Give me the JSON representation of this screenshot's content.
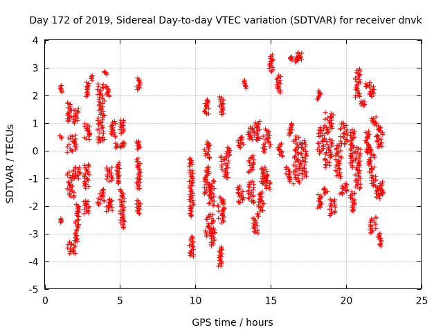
{
  "chart_data": {
    "type": "scatter",
    "title": "Day 172 of 2019, Sidereal Day-to-day VTEC variation (SDTVAR) for receiver dnvk",
    "xlabel": "GPS time / hours",
    "ylabel": "SDTVAR / TECUs",
    "xlim": [
      0,
      25
    ],
    "ylim": [
      -5,
      4
    ],
    "xticks": [
      0,
      5,
      10,
      15,
      20,
      25
    ],
    "yticks": [
      -5,
      -4,
      -3,
      -2,
      -1,
      0,
      1,
      2,
      3,
      4
    ],
    "xtick_labels": [
      "0",
      "5",
      "10",
      "15",
      "20",
      "25"
    ],
    "ytick_labels": [
      "-5",
      "-4",
      "-3",
      "-2",
      "-1",
      "0",
      "1",
      "2",
      "3",
      "4"
    ],
    "grid": true,
    "marker": "+",
    "series_color": "#ff0000",
    "clusters": [
      {
        "x": [
          1.0,
          1.15
        ],
        "y": [
          2.1,
          2.35
        ]
      },
      {
        "x": [
          1.0,
          1.15
        ],
        "y": [
          0.45,
          0.55
        ]
      },
      {
        "x": [
          1.0,
          1.15
        ],
        "y": [
          -2.6,
          -2.45
        ]
      },
      {
        "x": [
          1.5,
          1.8
        ],
        "y": [
          1.05,
          1.75
        ]
      },
      {
        "x": [
          1.5,
          2.1
        ],
        "y": [
          -0.05,
          0.55
        ]
      },
      {
        "x": [
          1.5,
          2.0
        ],
        "y": [
          -1.7,
          -0.8
        ]
      },
      {
        "x": [
          1.5,
          2.1
        ],
        "y": [
          -3.75,
          -3.3
        ]
      },
      {
        "x": [
          1.9,
          2.35
        ],
        "y": [
          1.0,
          1.5
        ]
      },
      {
        "x": [
          1.9,
          2.4
        ],
        "y": [
          -1.0,
          -0.6
        ]
      },
      {
        "x": [
          2.0,
          2.3
        ],
        "y": [
          -3.3,
          -2.5
        ]
      },
      {
        "x": [
          2.1,
          2.35
        ],
        "y": [
          -2.4,
          -1.95
        ]
      },
      {
        "x": [
          2.7,
          2.95
        ],
        "y": [
          1.95,
          2.45
        ]
      },
      {
        "x": [
          2.6,
          3.0
        ],
        "y": [
          0.4,
          0.95
        ]
      },
      {
        "x": [
          2.6,
          3.0
        ],
        "y": [
          -1.35,
          -0.5
        ]
      },
      {
        "x": [
          2.6,
          3.0
        ],
        "y": [
          -2.3,
          -1.8
        ]
      },
      {
        "x": [
          3.1,
          3.25
        ],
        "y": [
          2.55,
          2.7
        ]
      },
      {
        "x": [
          3.5,
          4.0
        ],
        "y": [
          0.6,
          2.4
        ]
      },
      {
        "x": [
          3.5,
          4.0
        ],
        "y": [
          0.3,
          0.5
        ]
      },
      {
        "x": [
          3.5,
          4.0
        ],
        "y": [
          -1.95,
          -1.4
        ]
      },
      {
        "x": [
          3.95,
          4.15
        ],
        "y": [
          2.75,
          2.85
        ]
      },
      {
        "x": [
          4.05,
          4.3
        ],
        "y": [
          1.95,
          2.3
        ]
      },
      {
        "x": [
          4.1,
          4.5
        ],
        "y": [
          -1.1,
          -0.6
        ]
      },
      {
        "x": [
          4.1,
          4.5
        ],
        "y": [
          -2.2,
          -1.75
        ]
      },
      {
        "x": [
          4.4,
          4.7
        ],
        "y": [
          0.5,
          1.05
        ]
      },
      {
        "x": [
          4.7,
          4.85
        ],
        "y": [
          0.1,
          0.25
        ]
      },
      {
        "x": [
          4.8,
          5.0
        ],
        "y": [
          -1.2,
          -0.45
        ]
      },
      {
        "x": [
          5.0,
          5.3
        ],
        "y": [
          0.6,
          1.1
        ]
      },
      {
        "x": [
          5.0,
          5.3
        ],
        "y": [
          0.1,
          0.3
        ]
      },
      {
        "x": [
          5.0,
          5.3
        ],
        "y": [
          -2.8,
          -1.4
        ]
      },
      {
        "x": [
          6.1,
          6.35
        ],
        "y": [
          2.2,
          2.6
        ]
      },
      {
        "x": [
          6.1,
          6.35
        ],
        "y": [
          0.05,
          0.35
        ]
      },
      {
        "x": [
          6.1,
          6.35
        ],
        "y": [
          -1.4,
          -0.3
        ]
      },
      {
        "x": [
          6.1,
          6.35
        ],
        "y": [
          -2.3,
          -1.8
        ]
      },
      {
        "x": [
          9.6,
          9.85
        ],
        "y": [
          -0.55,
          -0.3
        ]
      },
      {
        "x": [
          9.6,
          9.9
        ],
        "y": [
          -2.4,
          -0.7
        ]
      },
      {
        "x": [
          9.6,
          9.9
        ],
        "y": [
          -3.85,
          -3.1
        ]
      },
      {
        "x": [
          10.6,
          10.9
        ],
        "y": [
          1.3,
          1.85
        ]
      },
      {
        "x": [
          10.6,
          11.0
        ],
        "y": [
          -0.3,
          0.3
        ]
      },
      {
        "x": [
          10.6,
          11.0
        ],
        "y": [
          -1.6,
          -0.6
        ]
      },
      {
        "x": [
          10.6,
          11.2
        ],
        "y": [
          -3.1,
          -2.3
        ]
      },
      {
        "x": [
          11.0,
          11.3
        ],
        "y": [
          -3.45,
          -2.8
        ]
      },
      {
        "x": [
          10.9,
          11.3
        ],
        "y": [
          -2.0,
          -1.1
        ]
      },
      {
        "x": [
          11.5,
          11.8
        ],
        "y": [
          -4.2,
          -3.5
        ]
      },
      {
        "x": [
          11.6,
          11.9
        ],
        "y": [
          1.3,
          1.95
        ]
      },
      {
        "x": [
          11.5,
          12.0
        ],
        "y": [
          -2.6,
          -1.7
        ]
      },
      {
        "x": [
          11.7,
          12.2
        ],
        "y": [
          -1.0,
          -0.2
        ]
      },
      {
        "x": [
          12.0,
          12.35
        ],
        "y": [
          -0.25,
          0.1
        ]
      },
      {
        "x": [
          12.8,
          13.2
        ],
        "y": [
          -1.9,
          -1.3
        ]
      },
      {
        "x": [
          12.8,
          13.2
        ],
        "y": [
          0.1,
          0.5
        ]
      },
      {
        "x": [
          13.2,
          13.4
        ],
        "y": [
          2.25,
          2.55
        ]
      },
      {
        "x": [
          13.5,
          13.85
        ],
        "y": [
          0.4,
          0.85
        ]
      },
      {
        "x": [
          13.5,
          13.9
        ],
        "y": [
          -1.9,
          -1.1
        ]
      },
      {
        "x": [
          13.5,
          13.9
        ],
        "y": [
          -0.8,
          -0.2
        ]
      },
      {
        "x": [
          13.8,
          14.2
        ],
        "y": [
          -3.0,
          -2.3
        ]
      },
      {
        "x": [
          13.9,
          14.3
        ],
        "y": [
          0.35,
          1.05
        ]
      },
      {
        "x": [
          14.2,
          14.6
        ],
        "y": [
          -2.2,
          -1.5
        ]
      },
      {
        "x": [
          14.3,
          14.8
        ],
        "y": [
          -1.2,
          -0.6
        ]
      },
      {
        "x": [
          14.5,
          15.0
        ],
        "y": [
          -0.05,
          0.75
        ]
      },
      {
        "x": [
          14.6,
          15.0
        ],
        "y": [
          -1.4,
          -0.9
        ]
      },
      {
        "x": [
          14.9,
          15.2
        ],
        "y": [
          2.85,
          3.45
        ]
      },
      {
        "x": [
          15.4,
          15.7
        ],
        "y": [
          2.1,
          2.7
        ]
      },
      {
        "x": [
          15.5,
          15.8
        ],
        "y": [
          -0.2,
          0.25
        ]
      },
      {
        "x": [
          16.0,
          16.3
        ],
        "y": [
          -1.1,
          -0.6
        ]
      },
      {
        "x": [
          16.2,
          16.45
        ],
        "y": [
          0.55,
          0.95
        ]
      },
      {
        "x": [
          16.3,
          16.5
        ],
        "y": [
          3.25,
          3.4
        ]
      },
      {
        "x": [
          16.6,
          16.9
        ],
        "y": [
          3.2,
          3.4
        ]
      },
      {
        "x": [
          16.8,
          17.1
        ],
        "y": [
          3.3,
          3.55
        ]
      },
      {
        "x": [
          16.5,
          17.0
        ],
        "y": [
          -1.2,
          0.5
        ]
      },
      {
        "x": [
          17.0,
          17.4
        ],
        "y": [
          -1.0,
          0.35
        ]
      },
      {
        "x": [
          18.1,
          18.35
        ],
        "y": [
          1.85,
          2.15
        ]
      },
      {
        "x": [
          18.1,
          18.4
        ],
        "y": [
          -2.1,
          -1.6
        ]
      },
      {
        "x": [
          18.1,
          18.6
        ],
        "y": [
          -0.1,
          0.9
        ]
      },
      {
        "x": [
          18.5,
          18.8
        ],
        "y": [
          -1.55,
          -1.35
        ]
      },
      {
        "x": [
          18.6,
          19.2
        ],
        "y": [
          0.6,
          1.35
        ]
      },
      {
        "x": [
          18.6,
          19.1
        ],
        "y": [
          -0.6,
          0.4
        ]
      },
      {
        "x": [
          18.9,
          19.3
        ],
        "y": [
          -2.35,
          -1.75
        ]
      },
      {
        "x": [
          19.3,
          19.7
        ],
        "y": [
          -1.0,
          0.2
        ]
      },
      {
        "x": [
          19.6,
          20.1
        ],
        "y": [
          0.2,
          1.0
        ]
      },
      {
        "x": [
          19.6,
          20.1
        ],
        "y": [
          -1.6,
          -1.2
        ]
      },
      {
        "x": [
          20.3,
          20.6
        ],
        "y": [
          -0.6,
          0.75
        ]
      },
      {
        "x": [
          20.3,
          20.6
        ],
        "y": [
          -2.2,
          -1.5
        ]
      },
      {
        "x": [
          20.6,
          20.95
        ],
        "y": [
          1.9,
          2.95
        ]
      },
      {
        "x": [
          20.6,
          21.0
        ],
        "y": [
          -1.4,
          0.1
        ]
      },
      {
        "x": [
          21.0,
          21.3
        ],
        "y": [
          1.6,
          1.8
        ]
      },
      {
        "x": [
          21.3,
          21.6
        ],
        "y": [
          -0.1,
          0.7
        ]
      },
      {
        "x": [
          21.3,
          21.6
        ],
        "y": [
          2.3,
          2.45
        ]
      },
      {
        "x": [
          21.5,
          21.9
        ],
        "y": [
          1.95,
          2.3
        ]
      },
      {
        "x": [
          21.5,
          21.9
        ],
        "y": [
          -0.8,
          0.1
        ]
      },
      {
        "x": [
          21.7,
          22.0
        ],
        "y": [
          -1.3,
          -0.9
        ]
      },
      {
        "x": [
          21.6,
          22.0
        ],
        "y": [
          -3.0,
          -2.4
        ]
      },
      {
        "x": [
          21.7,
          22.0
        ],
        "y": [
          0.95,
          1.2
        ]
      },
      {
        "x": [
          22.0,
          22.3
        ],
        "y": [
          -1.75,
          -1.35
        ]
      },
      {
        "x": [
          22.1,
          22.4
        ],
        "y": [
          -3.45,
          -3.0
        ]
      },
      {
        "x": [
          22.0,
          22.5
        ],
        "y": [
          0.1,
          0.95
        ]
      },
      {
        "x": [
          22.2,
          22.5
        ],
        "y": [
          -1.6,
          -1.15
        ]
      }
    ]
  }
}
